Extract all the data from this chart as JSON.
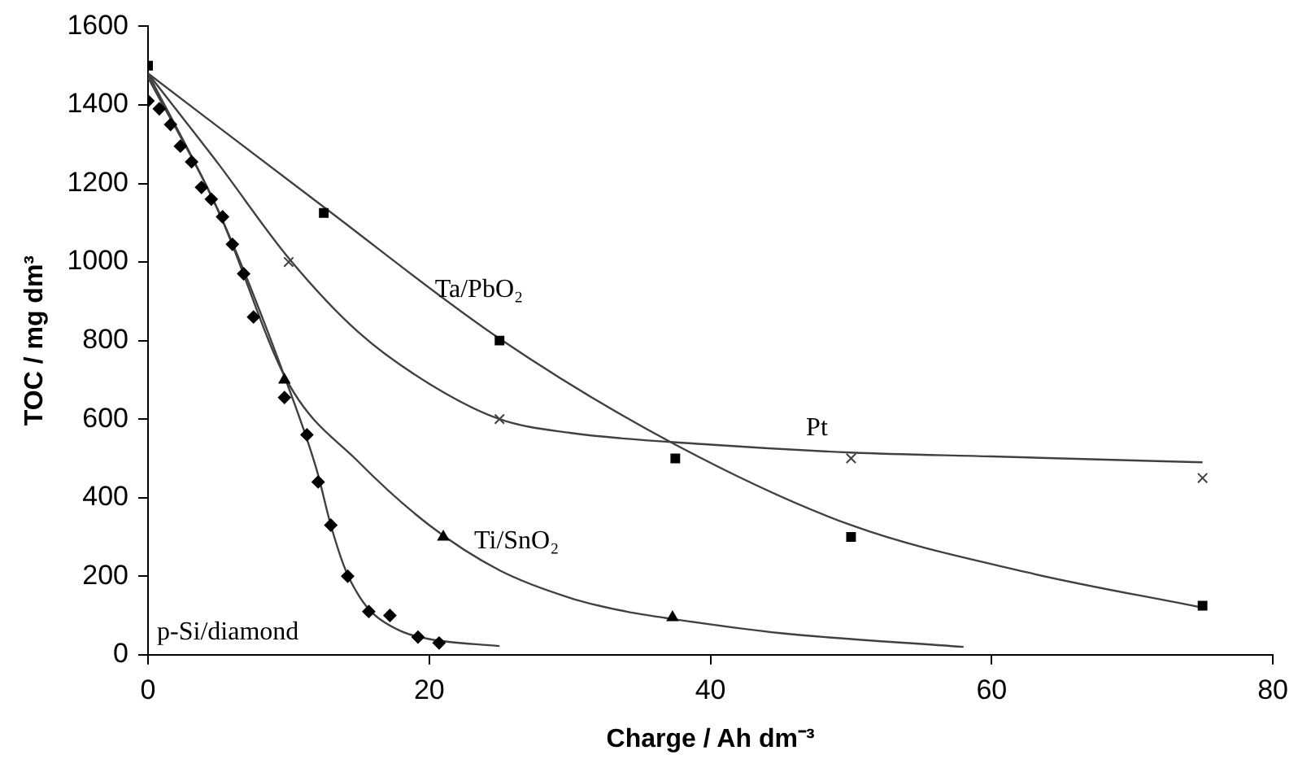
{
  "chart_data": {
    "type": "scatter",
    "xlabel": "Charge / Ah dm⁻³",
    "ylabel": "TOC / mg dm³",
    "xlim": [
      0,
      80
    ],
    "xticks": [
      0,
      20,
      40,
      60,
      80
    ],
    "ylim": [
      0,
      1600
    ],
    "yticks": [
      0,
      200,
      400,
      600,
      800,
      1000,
      1200,
      1400,
      1600
    ],
    "grid": false,
    "legend": false,
    "series": [
      {
        "marker": "square",
        "color": "#000000",
        "x": [
          0,
          12.5,
          25,
          37.5,
          50,
          75
        ],
        "values": [
          1500,
          1125,
          800,
          500,
          300,
          125
        ]
      },
      {
        "marker": "cross",
        "color": "#404040",
        "x": [
          10,
          25,
          50,
          75
        ],
        "values": [
          1000,
          600,
          500,
          450
        ]
      },
      {
        "marker": "triangle",
        "color": "#000000",
        "x": [
          9.7,
          21,
          37.3
        ],
        "values": [
          700,
          300,
          95
        ]
      },
      {
        "marker": "diamond",
        "color": "#000000",
        "x": [
          0,
          0.8,
          1.6,
          2.3,
          3.1,
          3.8,
          4.5,
          5.3,
          6,
          6.8,
          7.5,
          9.7,
          11.3,
          12.1,
          13,
          14.2,
          15.7,
          17.2,
          19.2,
          20.7
        ],
        "values": [
          1410,
          1390,
          1350,
          1295,
          1255,
          1190,
          1160,
          1115,
          1045,
          970,
          860,
          655,
          560,
          440,
          330,
          200,
          110,
          100,
          45,
          30
        ]
      },
      {
        "type": "line",
        "marker": "none",
        "color": "#404040",
        "x": [
          0,
          12.5,
          25,
          37.5,
          50,
          62.5,
          75
        ],
        "values": [
          1480,
          1140,
          805,
          535,
          330,
          210,
          120
        ]
      },
      {
        "type": "line",
        "marker": "none",
        "color": "#404040",
        "x": [
          0,
          5,
          10,
          15,
          20,
          25,
          30,
          40,
          50,
          60,
          75
        ],
        "values": [
          1480,
          1250,
          1010,
          820,
          690,
          600,
          565,
          535,
          515,
          505,
          490
        ]
      },
      {
        "type": "line",
        "marker": "none",
        "color": "#404040",
        "x": [
          0,
          5,
          10,
          15,
          20,
          25,
          30,
          34,
          37.5,
          45,
          58
        ],
        "values": [
          1480,
          1130,
          690,
          490,
          330,
          215,
          145,
          110,
          90,
          55,
          20
        ]
      },
      {
        "type": "line",
        "marker": "none",
        "color": "#404040",
        "x": [
          0,
          5,
          10,
          12,
          13,
          14,
          15,
          16,
          18,
          20,
          25
        ],
        "values": [
          1470,
          1130,
          680,
          470,
          330,
          220,
          150,
          105,
          60,
          40,
          22
        ]
      }
    ],
    "annotations": [
      "Ta/PbO₂",
      "Pt",
      "Ti/SnO₂",
      "p-Si/diamond"
    ]
  }
}
